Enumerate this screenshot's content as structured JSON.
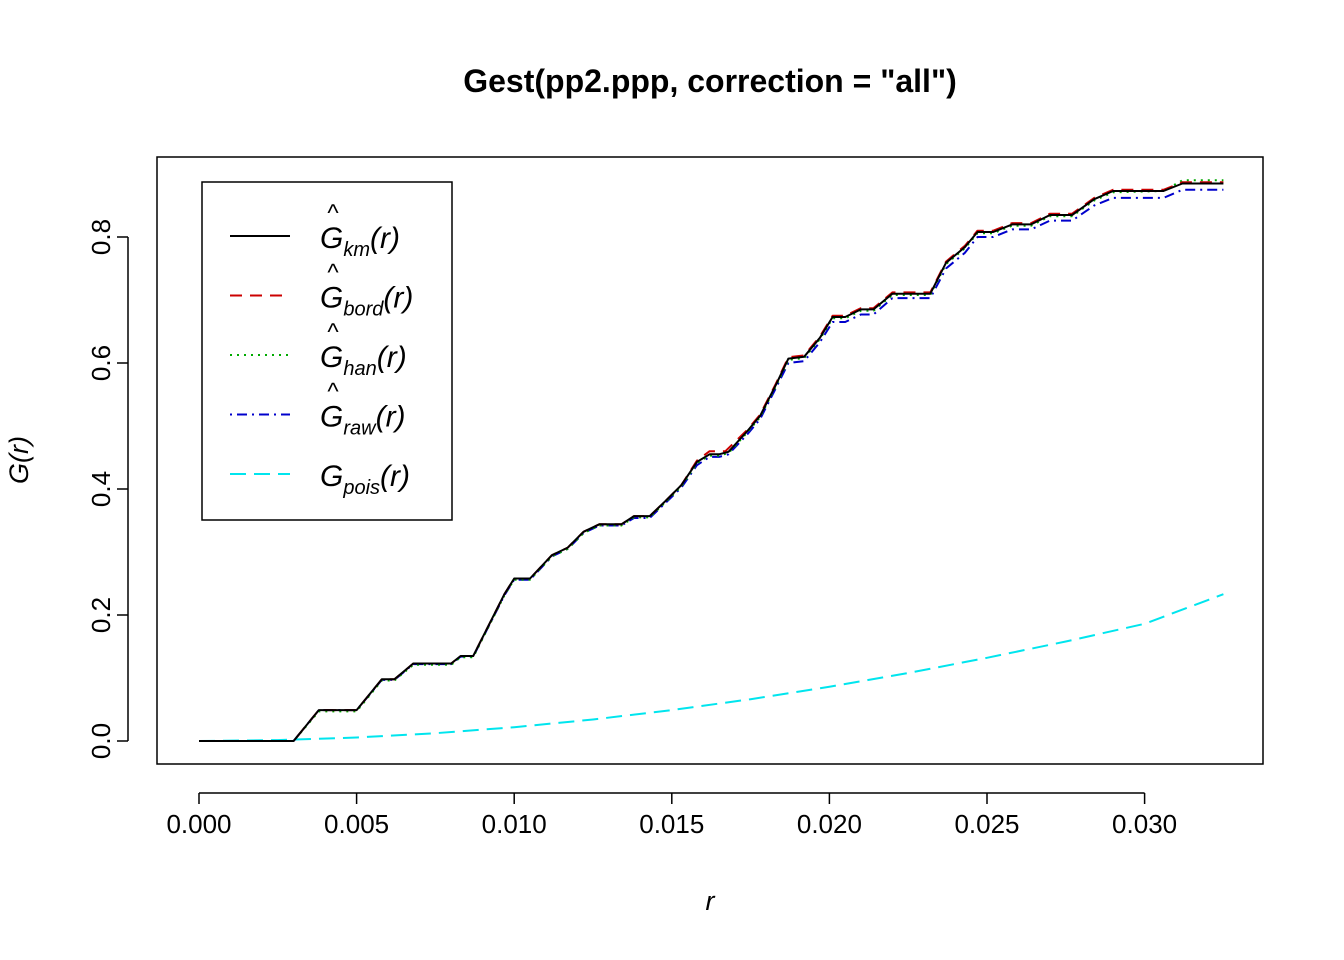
{
  "chart_data": {
    "type": "line",
    "title": "Gest(pp2.ppp, correction = \"all\")",
    "xlabel": "r",
    "ylabel": "G(r)",
    "xlim": [
      0.0,
      0.0325
    ],
    "ylim": [
      0.0,
      0.88
    ],
    "x_ticks": [
      "0.000",
      "0.005",
      "0.010",
      "0.015",
      "0.020",
      "0.025",
      "0.030"
    ],
    "y_ticks": [
      "0.0",
      "0.2",
      "0.4",
      "0.6",
      "0.8"
    ],
    "legend_position": "top-left",
    "series": [
      {
        "name": "km",
        "legend_label": "Ĝkm(r)",
        "symbol": "G",
        "hat": true,
        "subscript": "km",
        "color": "#000000",
        "dash": "solid",
        "points": [
          [
            0,
            0
          ],
          [
            0.003,
            0
          ],
          [
            0.0038,
            0.049
          ],
          [
            0.005,
            0.049
          ],
          [
            0.0058,
            0.098
          ],
          [
            0.0062,
            0.098
          ],
          [
            0.0068,
            0.123
          ],
          [
            0.008,
            0.123
          ],
          [
            0.0083,
            0.135
          ],
          [
            0.0087,
            0.135
          ],
          [
            0.0097,
            0.234
          ],
          [
            0.01,
            0.258
          ],
          [
            0.0105,
            0.258
          ],
          [
            0.0112,
            0.295
          ],
          [
            0.0117,
            0.307
          ],
          [
            0.0122,
            0.332
          ],
          [
            0.0127,
            0.344
          ],
          [
            0.0134,
            0.344
          ],
          [
            0.0138,
            0.357
          ],
          [
            0.0143,
            0.357
          ],
          [
            0.0148,
            0.381
          ],
          [
            0.0153,
            0.406
          ],
          [
            0.0158,
            0.443
          ],
          [
            0.0162,
            0.455
          ],
          [
            0.0165,
            0.455
          ],
          [
            0.0168,
            0.459
          ],
          [
            0.0174,
            0.492
          ],
          [
            0.0178,
            0.516
          ],
          [
            0.0183,
            0.565
          ],
          [
            0.0187,
            0.607
          ],
          [
            0.0192,
            0.61
          ],
          [
            0.0197,
            0.64
          ],
          [
            0.0201,
            0.673
          ],
          [
            0.0205,
            0.673
          ],
          [
            0.021,
            0.685
          ],
          [
            0.0214,
            0.685
          ],
          [
            0.022,
            0.71
          ],
          [
            0.0232,
            0.71
          ],
          [
            0.0237,
            0.759
          ],
          [
            0.0243,
            0.784
          ],
          [
            0.0247,
            0.808
          ],
          [
            0.0252,
            0.808
          ],
          [
            0.0258,
            0.82
          ],
          [
            0.0264,
            0.82
          ],
          [
            0.027,
            0.835
          ],
          [
            0.0277,
            0.835
          ],
          [
            0.0284,
            0.86
          ],
          [
            0.029,
            0.873
          ],
          [
            0.0301,
            0.873
          ],
          [
            0.0306,
            0.873
          ],
          [
            0.0312,
            0.885
          ],
          [
            0.0325,
            0.885
          ]
        ]
      },
      {
        "name": "bord",
        "legend_label": "Ĝbord(r)",
        "symbol": "G",
        "hat": true,
        "subscript": "bord",
        "color": "#cc0000",
        "dash": "dashed",
        "points": [
          [
            0,
            0
          ],
          [
            0.003,
            0
          ],
          [
            0.0038,
            0.049
          ],
          [
            0.005,
            0.049
          ],
          [
            0.0058,
            0.098
          ],
          [
            0.0062,
            0.098
          ],
          [
            0.0068,
            0.123
          ],
          [
            0.008,
            0.123
          ],
          [
            0.0083,
            0.135
          ],
          [
            0.0087,
            0.135
          ],
          [
            0.0097,
            0.234
          ],
          [
            0.01,
            0.258
          ],
          [
            0.0105,
            0.258
          ],
          [
            0.0112,
            0.295
          ],
          [
            0.0117,
            0.307
          ],
          [
            0.0122,
            0.332
          ],
          [
            0.0127,
            0.344
          ],
          [
            0.0134,
            0.344
          ],
          [
            0.0138,
            0.357
          ],
          [
            0.0143,
            0.357
          ],
          [
            0.0148,
            0.381
          ],
          [
            0.0153,
            0.406
          ],
          [
            0.0158,
            0.445
          ],
          [
            0.0162,
            0.46
          ],
          [
            0.0167,
            0.46
          ],
          [
            0.0174,
            0.494
          ],
          [
            0.0178,
            0.518
          ],
          [
            0.0183,
            0.567
          ],
          [
            0.0187,
            0.609
          ],
          [
            0.0192,
            0.612
          ],
          [
            0.0197,
            0.642
          ],
          [
            0.0201,
            0.675
          ],
          [
            0.0205,
            0.675
          ],
          [
            0.021,
            0.687
          ],
          [
            0.0214,
            0.687
          ],
          [
            0.022,
            0.712
          ],
          [
            0.0232,
            0.712
          ],
          [
            0.0237,
            0.761
          ],
          [
            0.0243,
            0.786
          ],
          [
            0.0247,
            0.81
          ],
          [
            0.0252,
            0.81
          ],
          [
            0.0258,
            0.822
          ],
          [
            0.0264,
            0.822
          ],
          [
            0.027,
            0.837
          ],
          [
            0.0277,
            0.837
          ],
          [
            0.0284,
            0.862
          ],
          [
            0.029,
            0.875
          ],
          [
            0.0306,
            0.875
          ],
          [
            0.0312,
            0.887
          ],
          [
            0.0325,
            0.887
          ]
        ]
      },
      {
        "name": "han",
        "legend_label": "Ĝhan(r)",
        "symbol": "G",
        "hat": true,
        "subscript": "han",
        "color": "#00aa00",
        "dash": "dotted",
        "points": [
          [
            0,
            0
          ],
          [
            0.003,
            0
          ],
          [
            0.0038,
            0.047
          ],
          [
            0.005,
            0.047
          ],
          [
            0.0058,
            0.096
          ],
          [
            0.0062,
            0.096
          ],
          [
            0.0068,
            0.121
          ],
          [
            0.008,
            0.121
          ],
          [
            0.0083,
            0.133
          ],
          [
            0.0087,
            0.133
          ],
          [
            0.0097,
            0.232
          ],
          [
            0.01,
            0.256
          ],
          [
            0.0105,
            0.256
          ],
          [
            0.0112,
            0.293
          ],
          [
            0.0117,
            0.305
          ],
          [
            0.0122,
            0.33
          ],
          [
            0.0127,
            0.342
          ],
          [
            0.0134,
            0.342
          ],
          [
            0.0138,
            0.355
          ],
          [
            0.0143,
            0.355
          ],
          [
            0.0148,
            0.379
          ],
          [
            0.0153,
            0.404
          ],
          [
            0.0158,
            0.441
          ],
          [
            0.0162,
            0.453
          ],
          [
            0.0165,
            0.453
          ],
          [
            0.0168,
            0.457
          ],
          [
            0.0174,
            0.49
          ],
          [
            0.0178,
            0.514
          ],
          [
            0.0183,
            0.563
          ],
          [
            0.0187,
            0.605
          ],
          [
            0.0192,
            0.608
          ],
          [
            0.0197,
            0.638
          ],
          [
            0.0201,
            0.671
          ],
          [
            0.0205,
            0.671
          ],
          [
            0.021,
            0.683
          ],
          [
            0.0214,
            0.683
          ],
          [
            0.022,
            0.708
          ],
          [
            0.0232,
            0.708
          ],
          [
            0.0237,
            0.757
          ],
          [
            0.0243,
            0.782
          ],
          [
            0.0247,
            0.806
          ],
          [
            0.0252,
            0.806
          ],
          [
            0.0258,
            0.818
          ],
          [
            0.0264,
            0.818
          ],
          [
            0.027,
            0.833
          ],
          [
            0.0277,
            0.833
          ],
          [
            0.0284,
            0.858
          ],
          [
            0.029,
            0.871
          ],
          [
            0.0306,
            0.873
          ],
          [
            0.0312,
            0.89
          ],
          [
            0.0325,
            0.89
          ]
        ]
      },
      {
        "name": "raw",
        "legend_label": "Ĝraw(r)",
        "symbol": "G",
        "hat": true,
        "subscript": "raw",
        "color": "#0000cc",
        "dash": "dotdash",
        "points": [
          [
            0,
            0
          ],
          [
            0.003,
            0
          ],
          [
            0.0038,
            0.049
          ],
          [
            0.005,
            0.049
          ],
          [
            0.0058,
            0.097
          ],
          [
            0.0062,
            0.097
          ],
          [
            0.0068,
            0.122
          ],
          [
            0.008,
            0.122
          ],
          [
            0.0083,
            0.134
          ],
          [
            0.0087,
            0.134
          ],
          [
            0.0097,
            0.232
          ],
          [
            0.01,
            0.256
          ],
          [
            0.0105,
            0.256
          ],
          [
            0.0112,
            0.293
          ],
          [
            0.0117,
            0.305
          ],
          [
            0.0122,
            0.33
          ],
          [
            0.0127,
            0.342
          ],
          [
            0.0134,
            0.342
          ],
          [
            0.0138,
            0.354
          ],
          [
            0.0143,
            0.354
          ],
          [
            0.0148,
            0.378
          ],
          [
            0.0153,
            0.402
          ],
          [
            0.0158,
            0.438
          ],
          [
            0.0162,
            0.451
          ],
          [
            0.0165,
            0.451
          ],
          [
            0.0168,
            0.455
          ],
          [
            0.0174,
            0.487
          ],
          [
            0.0178,
            0.511
          ],
          [
            0.0183,
            0.56
          ],
          [
            0.0187,
            0.6
          ],
          [
            0.0192,
            0.603
          ],
          [
            0.0197,
            0.633
          ],
          [
            0.0201,
            0.665
          ],
          [
            0.0205,
            0.665
          ],
          [
            0.021,
            0.677
          ],
          [
            0.0214,
            0.677
          ],
          [
            0.022,
            0.703
          ],
          [
            0.0232,
            0.703
          ],
          [
            0.0237,
            0.75
          ],
          [
            0.0243,
            0.775
          ],
          [
            0.0247,
            0.8
          ],
          [
            0.0252,
            0.8
          ],
          [
            0.0258,
            0.812
          ],
          [
            0.0264,
            0.812
          ],
          [
            0.027,
            0.826
          ],
          [
            0.0277,
            0.826
          ],
          [
            0.0284,
            0.85
          ],
          [
            0.029,
            0.862
          ],
          [
            0.0306,
            0.862
          ],
          [
            0.0312,
            0.875
          ],
          [
            0.0325,
            0.875
          ]
        ]
      },
      {
        "name": "pois",
        "legend_label": "Gpois(r)",
        "symbol": "G",
        "hat": false,
        "subscript": "pois",
        "color": "#00e5ee",
        "dash": "longdash",
        "points": [
          [
            0,
            0
          ],
          [
            0.0025,
            0.0014
          ],
          [
            0.005,
            0.0055
          ],
          [
            0.0075,
            0.0124
          ],
          [
            0.01,
            0.0219
          ],
          [
            0.0125,
            0.0342
          ],
          [
            0.015,
            0.049
          ],
          [
            0.0175,
            0.0663
          ],
          [
            0.02,
            0.086
          ],
          [
            0.0225,
            0.108
          ],
          [
            0.025,
            0.132
          ],
          [
            0.0275,
            0.158
          ],
          [
            0.03,
            0.186
          ],
          [
            0.0325,
            0.233
          ]
        ]
      }
    ]
  }
}
